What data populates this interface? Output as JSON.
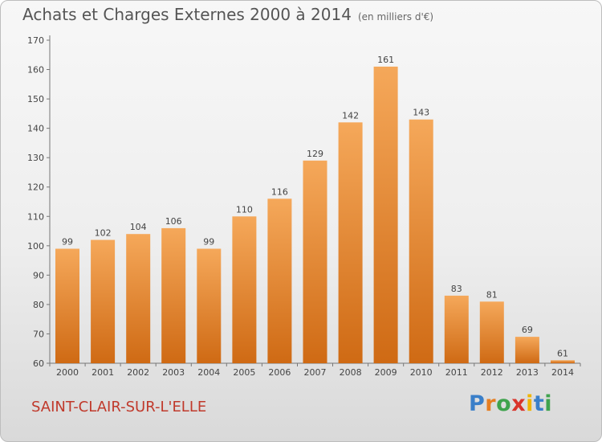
{
  "header": {
    "title": "Achats et Charges Externes 2000 à 2014",
    "subtitle": "(en milliers d'€)"
  },
  "footer": {
    "commune": "SAINT-CLAIR-SUR-L'ELLE",
    "brand_letters": [
      "P",
      "r",
      "o",
      "x",
      "i",
      "t",
      "i"
    ],
    "brand_colors": [
      "#3a7fc9",
      "#e67e22",
      "#3fa34d",
      "#d9342b",
      "#f0b400",
      "#3a7fc9",
      "#3fa34d"
    ]
  },
  "chart_data": {
    "type": "bar",
    "title": "Achats et Charges Externes 2000 à 2014",
    "subtitle": "(en milliers d'€)",
    "categories": [
      "2000",
      "2001",
      "2002",
      "2003",
      "2004",
      "2005",
      "2006",
      "2007",
      "2008",
      "2009",
      "2010",
      "2011",
      "2012",
      "2013",
      "2014"
    ],
    "values": [
      99,
      102,
      104,
      106,
      99,
      110,
      116,
      129,
      142,
      161,
      143,
      83,
      81,
      69,
      61
    ],
    "ylim": [
      60,
      170
    ],
    "yticks": [
      60,
      70,
      80,
      90,
      100,
      110,
      120,
      130,
      140,
      150,
      160,
      170
    ],
    "grid": false,
    "bar_color_top": "#f5a85a",
    "bar_color_bottom": "#cf6a14"
  }
}
